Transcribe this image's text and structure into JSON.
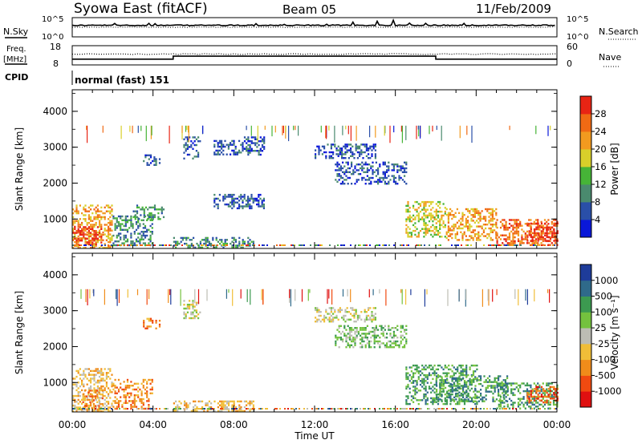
{
  "header": {
    "station": "Syowa East (fitACF)",
    "beam": "Beam 05",
    "date": "11/Feb/2009"
  },
  "top_panels": {
    "nsky_label": "N.Sky",
    "nsky_ticks": [
      "10^5",
      "10^0"
    ],
    "nsearch_label": "N.Search",
    "nsearch_ticks": [
      "10^5",
      "10^0"
    ],
    "freq_label_1": "Freq.",
    "freq_label_2": "[MHz]",
    "freq_ticks": [
      "18",
      "8"
    ],
    "nave_label": "Nave",
    "nave_ticks": [
      "60",
      "0"
    ],
    "cpid_label": "CPID",
    "cpid_value": "normal (fast) 151",
    "freq_steps": [
      {
        "from_hour": 0,
        "to_hour": 5,
        "mhz": 10.8
      },
      {
        "from_hour": 5,
        "to_hour": 18,
        "mhz": 12.5
      },
      {
        "from_hour": 18,
        "to_hour": 24,
        "mhz": 10.8
      }
    ],
    "nave_level": 34
  },
  "colors": {
    "power_scale": [
      "#0a18d9",
      "#2a4fa8",
      "#4a8a6e",
      "#46b437",
      "#d8cf2a",
      "#f29a1f",
      "#f06a14",
      "#e82414"
    ],
    "velocity_scale": [
      "#e01010",
      "#f04a10",
      "#f08c1a",
      "#f0be38",
      "#bdbdb4",
      "#74c23e",
      "#3c9a50",
      "#2f6a8a",
      "#1e3c9a"
    ]
  },
  "chart_data": [
    {
      "type": "heatmap",
      "name": "power",
      "xlabel": "",
      "ylabel": "Slant Range [km]",
      "x_range_hours": [
        0,
        24
      ],
      "ylim": [
        180,
        4600
      ],
      "y_ticks": [
        "1000",
        "2000",
        "3000",
        "4000"
      ],
      "colorbar_label": "Power [dB]",
      "colorbar_ticks": [
        "4",
        "8",
        "12",
        "16",
        "20",
        "24",
        "28"
      ],
      "echo_regions": [
        {
          "t0": 0.0,
          "t1": 2.0,
          "r0": 200,
          "r1": 1400,
          "level": 5
        },
        {
          "t0": 0.0,
          "t1": 1.5,
          "r0": 300,
          "r1": 800,
          "level": 7
        },
        {
          "t0": 2.0,
          "t1": 4.0,
          "r0": 250,
          "r1": 1100,
          "level": 2
        },
        {
          "t0": 3.0,
          "t1": 4.5,
          "r0": 1000,
          "r1": 1400,
          "level": 2
        },
        {
          "t0": 3.5,
          "t1": 4.3,
          "r0": 2500,
          "r1": 2800,
          "level": 1
        },
        {
          "t0": 5.5,
          "t1": 6.3,
          "r0": 2700,
          "r1": 3300,
          "level": 1
        },
        {
          "t0": 7.0,
          "t1": 8.5,
          "r0": 2800,
          "r1": 3200,
          "level": 1
        },
        {
          "t0": 8.5,
          "t1": 9.5,
          "r0": 2800,
          "r1": 3300,
          "level": 1
        },
        {
          "t0": 5.0,
          "t1": 9.0,
          "r0": 200,
          "r1": 500,
          "level": 2
        },
        {
          "t0": 7.0,
          "t1": 9.5,
          "r0": 1300,
          "r1": 1700,
          "level": 1
        },
        {
          "t0": 12.0,
          "t1": 15.0,
          "r0": 2700,
          "r1": 3100,
          "level": 1
        },
        {
          "t0": 13.0,
          "t1": 16.5,
          "r0": 2000,
          "r1": 2600,
          "level": 1
        },
        {
          "t0": 16.5,
          "t1": 18.5,
          "r0": 500,
          "r1": 1500,
          "level": 4
        },
        {
          "t0": 18.5,
          "t1": 21.0,
          "r0": 400,
          "r1": 1300,
          "level": 5
        },
        {
          "t0": 21.0,
          "t1": 24.0,
          "r0": 250,
          "r1": 1000,
          "level": 6
        },
        {
          "t0": 22.5,
          "t1": 24.0,
          "r0": 400,
          "r1": 900,
          "level": 7
        }
      ]
    },
    {
      "type": "heatmap",
      "name": "velocity",
      "xlabel": "Time UT",
      "ylabel": "Slant Range [km]",
      "x_range_hours": [
        0,
        24
      ],
      "x_ticks": [
        "00:00",
        "04:00",
        "08:00",
        "12:00",
        "16:00",
        "20:00",
        "00:00"
      ],
      "ylim": [
        180,
        4600
      ],
      "y_ticks": [
        "1000",
        "2000",
        "3000",
        "4000"
      ],
      "colorbar_label": "Velocity [m s⁻¹]",
      "colorbar_ticks": [
        "1000",
        "500",
        "100",
        "25",
        "-25",
        "-100",
        "-500",
        "-1000"
      ],
      "echo_regions": [
        {
          "t0": 0.0,
          "t1": 2.0,
          "r0": 200,
          "r1": 1400,
          "level": 3
        },
        {
          "t0": 0.5,
          "t1": 1.5,
          "r0": 300,
          "r1": 800,
          "level": 2
        },
        {
          "t0": 2.0,
          "t1": 4.0,
          "r0": 250,
          "r1": 1100,
          "level": 2
        },
        {
          "t0": 3.5,
          "t1": 4.3,
          "r0": 2500,
          "r1": 2800,
          "level": 2
        },
        {
          "t0": 5.5,
          "t1": 6.3,
          "r0": 2800,
          "r1": 3300,
          "level": 4
        },
        {
          "t0": 5.0,
          "t1": 9.0,
          "r0": 200,
          "r1": 500,
          "level": 3
        },
        {
          "t0": 12.0,
          "t1": 15.0,
          "r0": 2700,
          "r1": 3100,
          "level": 4
        },
        {
          "t0": 13.0,
          "t1": 16.5,
          "r0": 2000,
          "r1": 2600,
          "level": 5
        },
        {
          "t0": 16.5,
          "t1": 20.0,
          "r0": 400,
          "r1": 1500,
          "level": 6
        },
        {
          "t0": 18.0,
          "t1": 21.5,
          "r0": 500,
          "r1": 1200,
          "level": 6
        },
        {
          "t0": 21.0,
          "t1": 24.0,
          "r0": 250,
          "r1": 1000,
          "level": 6
        },
        {
          "t0": 22.5,
          "t1": 24.0,
          "r0": 450,
          "r1": 900,
          "level": 1
        }
      ]
    }
  ]
}
